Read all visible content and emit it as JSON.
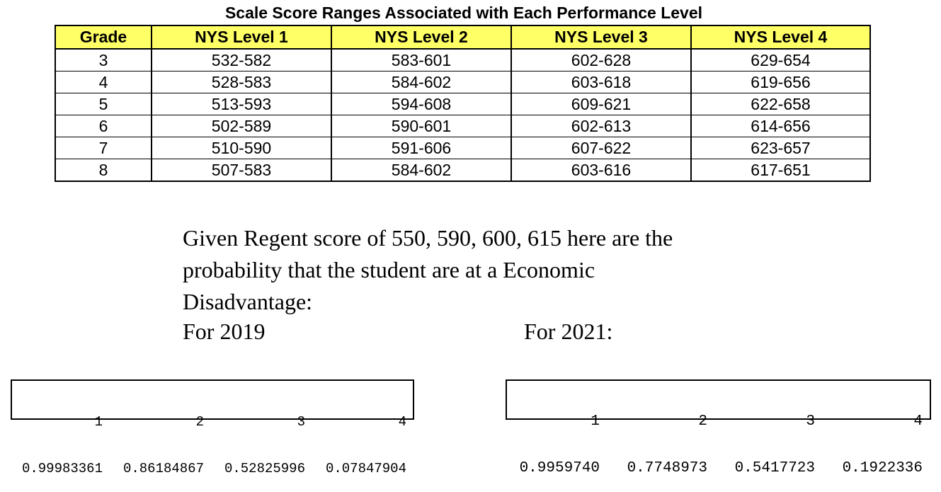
{
  "title": "Scale Score Ranges Associated with Each Performance Level",
  "table": {
    "headers": [
      "Grade",
      "NYS Level 1",
      "NYS Level 2",
      "NYS Level 3",
      "NYS Level 4"
    ],
    "rows": [
      [
        "3",
        "532-582",
        "583-601",
        "602-628",
        "629-654"
      ],
      [
        "4",
        "528-583",
        "584-602",
        "603-618",
        "619-656"
      ],
      [
        "5",
        "513-593",
        "594-608",
        "609-621",
        "622-658"
      ],
      [
        "6",
        "502-589",
        "590-601",
        "602-613",
        "614-656"
      ],
      [
        "7",
        "510-590",
        "591-606",
        "607-622",
        "623-657"
      ],
      [
        "8",
        "507-583",
        "584-602",
        "603-616",
        "617-651"
      ]
    ]
  },
  "paragraph": {
    "line1": "Given Regent score of 550, 590, 600, 615 here are the",
    "line2": "probability that the student are at a Economic",
    "line3": "Disadvantage:"
  },
  "label_2019": "For 2019",
  "label_2021": "For 2021:",
  "output_2019": {
    "indices": [
      "1",
      "2",
      "3",
      "4"
    ],
    "values": [
      "0.99983361",
      "0.86184867",
      "0.52825996",
      "0.07847904"
    ]
  },
  "output_2021": {
    "indices": [
      "1",
      "2",
      "3",
      "4"
    ],
    "values": [
      "0.9959740",
      "0.7748973",
      "0.5417723",
      "0.1922336"
    ]
  }
}
